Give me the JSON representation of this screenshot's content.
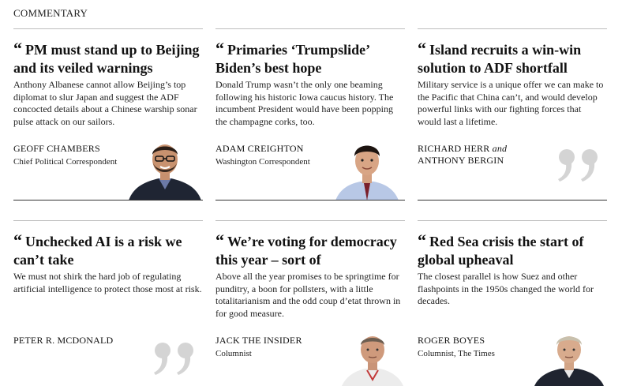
{
  "section": {
    "label": "COMMENTARY"
  },
  "articles": [
    {
      "headline": "PM must stand up to Beijing and its veiled warnings",
      "standfirst": "Anthony Albanese cannot allow Beijing’s top diplomat to slur Japan and suggest the ADF concocted details about a Chinese warship sonar pulse attack on our sailors.",
      "author": "GEOFF CHAMBERS",
      "role": "Chief Political Correspondent",
      "visual": "author-photo"
    },
    {
      "headline": "Primaries ‘Trumpslide’ Biden’s best hope",
      "standfirst": "Donald Trump wasn’t the only one beaming following his historic Iowa caucus history. The incumbent President would have been popping the champagne corks, too.",
      "author": "ADAM CREIGHTON",
      "role": "Washington Correspondent",
      "visual": "author-photo"
    },
    {
      "headline": "Island recruits a win-win solution to ADF shortfall",
      "standfirst": "Military service is a unique offer we can make to the Pacific that China can’t, and would develop powerful links with our fighting forces that would last a lifetime.",
      "author": "RICHARD HERR",
      "author_joiner": "and",
      "author2": "ANTHONY BERGIN",
      "role": "",
      "visual": "quote-mark"
    },
    {
      "headline": "Unchecked AI is a risk we can’t take",
      "standfirst": "We must not shirk the hard job of regulating artificial intelligence to protect those most at risk.",
      "author": "PETER R. MCDONALD",
      "role": "",
      "visual": "quote-mark"
    },
    {
      "headline": "We’re voting for democracy this year – sort of",
      "standfirst": "Above all the year promises to be springtime for punditry, a boon for pollsters, with a little totalitarianism and the odd coup d’etat thrown in for good measure.",
      "author": "JACK THE INSIDER",
      "role": "Columnist",
      "visual": "author-photo"
    },
    {
      "headline": "Red Sea crisis the start of global upheaval",
      "standfirst": "The closest parallel is how Suez and other flashpoints in the 1950s changed the world for decades.",
      "author": "ROGER BOYES",
      "role": "Columnist, The Times",
      "visual": "author-photo"
    }
  ]
}
